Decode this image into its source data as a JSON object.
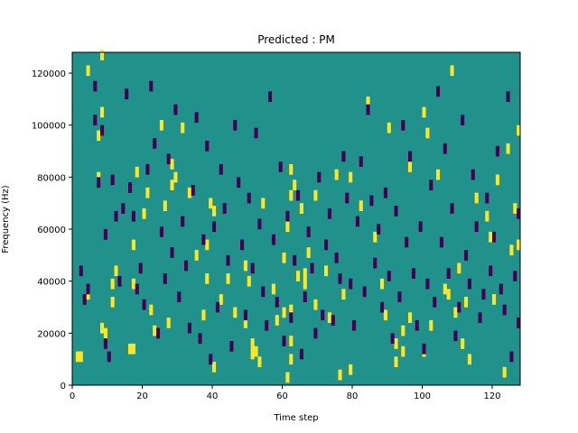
{
  "chart_data": {
    "type": "heatmap",
    "title": "Predicted : PM",
    "xlabel": "Time step",
    "ylabel": "Frequency (Hz)",
    "xlim": [
      0,
      128
    ],
    "ylim": [
      0,
      128000
    ],
    "x_ticks": [
      0,
      20,
      40,
      60,
      80,
      100,
      120
    ],
    "y_ticks": [
      0,
      20000,
      40000,
      60000,
      80000,
      100000,
      120000
    ],
    "y_tick_labels": [
      "0",
      "20000",
      "40000",
      "60000",
      "80000",
      "100000",
      "120000"
    ],
    "colormap": {
      "background": "#21918c",
      "high": "#fde725",
      "low": "#440154"
    },
    "grid": false,
    "cells": {
      "high": [
        [
          1,
          12
        ],
        [
          2,
          12
        ],
        [
          4,
          36
        ],
        [
          4,
          122
        ],
        [
          7,
          97
        ],
        [
          7,
          81
        ],
        [
          8,
          106
        ],
        [
          8,
          23
        ],
        [
          8,
          128
        ],
        [
          9,
          21
        ],
        [
          11,
          40
        ],
        [
          11,
          33
        ],
        [
          12,
          45
        ],
        [
          16,
          15
        ],
        [
          17,
          15
        ],
        [
          17,
          55
        ],
        [
          17,
          40
        ],
        [
          18,
          83
        ],
        [
          20,
          67
        ],
        [
          21,
          75
        ],
        [
          22,
          30
        ],
        [
          23,
          22
        ],
        [
          25,
          101
        ],
        [
          26,
          70
        ],
        [
          27,
          25
        ],
        [
          28,
          86
        ],
        [
          28,
          78
        ],
        [
          29,
          81
        ],
        [
          31,
          100
        ],
        [
          33,
          75
        ],
        [
          35,
          51
        ],
        [
          37,
          28
        ],
        [
          38,
          55
        ],
        [
          38,
          42
        ],
        [
          39,
          71
        ],
        [
          40,
          8
        ],
        [
          40,
          68
        ],
        [
          42,
          34
        ],
        [
          44,
          42
        ],
        [
          46,
          29
        ],
        [
          49,
          25
        ],
        [
          49,
          47
        ],
        [
          50,
          41
        ],
        [
          51,
          13
        ],
        [
          51,
          17
        ],
        [
          52,
          14
        ],
        [
          53,
          10
        ],
        [
          54,
          71
        ],
        [
          57,
          38
        ],
        [
          58,
          26
        ],
        [
          60,
          50
        ],
        [
          60,
          29
        ],
        [
          61,
          4
        ],
        [
          61,
          62
        ],
        [
          62,
          30
        ],
        [
          62,
          18
        ],
        [
          62,
          11
        ],
        [
          62,
          84
        ],
        [
          62,
          74
        ],
        [
          63,
          78
        ],
        [
          64,
          43
        ],
        [
          65,
          69
        ],
        [
          66,
          40
        ],
        [
          66,
          44
        ],
        [
          67,
          52
        ],
        [
          69,
          32
        ],
        [
          69,
          74
        ],
        [
          72,
          45
        ],
        [
          73,
          27
        ],
        [
          75,
          82
        ],
        [
          76,
          5
        ],
        [
          77,
          36
        ],
        [
          79,
          7
        ],
        [
          79,
          81
        ],
        [
          82,
          70
        ],
        [
          84,
          110
        ],
        [
          86,
          58
        ],
        [
          88,
          40
        ],
        [
          89,
          28
        ],
        [
          90,
          100
        ],
        [
          92,
          10
        ],
        [
          92,
          17
        ],
        [
          94,
          22
        ],
        [
          94,
          14
        ],
        [
          96,
          27
        ],
        [
          96,
          85
        ],
        [
          100,
          106
        ],
        [
          100,
          14
        ],
        [
          101,
          98
        ],
        [
          102,
          24
        ],
        [
          104,
          82
        ],
        [
          106,
          38
        ],
        [
          107,
          36
        ],
        [
          108,
          122
        ],
        [
          109,
          29
        ],
        [
          110,
          46
        ],
        [
          111,
          17
        ],
        [
          112,
          33
        ],
        [
          113,
          11
        ],
        [
          115,
          73
        ],
        [
          118,
          66
        ],
        [
          119,
          58
        ],
        [
          120,
          34
        ],
        [
          121,
          80
        ],
        [
          123,
          6
        ],
        [
          124,
          92
        ],
        [
          125,
          53
        ],
        [
          126,
          69
        ],
        [
          127,
          55
        ],
        [
          127,
          99
        ]
      ],
      "low": [
        [
          2,
          45
        ],
        [
          3,
          34
        ],
        [
          4,
          38
        ],
        [
          6,
          116
        ],
        [
          6,
          103
        ],
        [
          7,
          79
        ],
        [
          8,
          99
        ],
        [
          9,
          17
        ],
        [
          9,
          59
        ],
        [
          10,
          12
        ],
        [
          11,
          80
        ],
        [
          12,
          66
        ],
        [
          13,
          41
        ],
        [
          14,
          69
        ],
        [
          15,
          113
        ],
        [
          16,
          77
        ],
        [
          17,
          66
        ],
        [
          18,
          38
        ],
        [
          19,
          46
        ],
        [
          20,
          32
        ],
        [
          21,
          84
        ],
        [
          22,
          116
        ],
        [
          23,
          94
        ],
        [
          24,
          21
        ],
        [
          25,
          60
        ],
        [
          26,
          42
        ],
        [
          27,
          88
        ],
        [
          28,
          52
        ],
        [
          29,
          107
        ],
        [
          30,
          35
        ],
        [
          31,
          64
        ],
        [
          32,
          47
        ],
        [
          33,
          23
        ],
        [
          34,
          76
        ],
        [
          35,
          104
        ],
        [
          36,
          19
        ],
        [
          37,
          57
        ],
        [
          38,
          93
        ],
        [
          39,
          11
        ],
        [
          40,
          62
        ],
        [
          41,
          31
        ],
        [
          42,
          84
        ],
        [
          43,
          69
        ],
        [
          44,
          49
        ],
        [
          45,
          16
        ],
        [
          46,
          101
        ],
        [
          47,
          79
        ],
        [
          48,
          55
        ],
        [
          49,
          28
        ],
        [
          50,
          73
        ],
        [
          51,
          46
        ],
        [
          52,
          98
        ],
        [
          53,
          63
        ],
        [
          54,
          37
        ],
        [
          55,
          24
        ],
        [
          56,
          112
        ],
        [
          57,
          57
        ],
        [
          58,
          33
        ],
        [
          59,
          85
        ],
        [
          60,
          18
        ],
        [
          61,
          66
        ],
        [
          62,
          27
        ],
        [
          63,
          49
        ],
        [
          64,
          74
        ],
        [
          65,
          13
        ],
        [
          66,
          35
        ],
        [
          67,
          60
        ],
        [
          68,
          46
        ],
        [
          69,
          21
        ],
        [
          70,
          81
        ],
        [
          71,
          28
        ],
        [
          72,
          55
        ],
        [
          73,
          67
        ],
        [
          74,
          26
        ],
        [
          75,
          50
        ],
        [
          76,
          42
        ],
        [
          77,
          89
        ],
        [
          78,
          73
        ],
        [
          79,
          40
        ],
        [
          80,
          24
        ],
        [
          81,
          64
        ],
        [
          82,
          87
        ],
        [
          83,
          37
        ],
        [
          84,
          107
        ],
        [
          85,
          72
        ],
        [
          86,
          48
        ],
        [
          87,
          61
        ],
        [
          88,
          31
        ],
        [
          89,
          75
        ],
        [
          90,
          43
        ],
        [
          91,
          19
        ],
        [
          92,
          68
        ],
        [
          93,
          35
        ],
        [
          94,
          101
        ],
        [
          95,
          56
        ],
        [
          96,
          89
        ],
        [
          97,
          44
        ],
        [
          98,
          24
        ],
        [
          99,
          62
        ],
        [
          100,
          15
        ],
        [
          101,
          40
        ],
        [
          102,
          78
        ],
        [
          103,
          33
        ],
        [
          104,
          114
        ],
        [
          105,
          56
        ],
        [
          106,
          92
        ],
        [
          107,
          44
        ],
        [
          108,
          69
        ],
        [
          109,
          20
        ],
        [
          110,
          31
        ],
        [
          111,
          103
        ],
        [
          112,
          51
        ],
        [
          113,
          40
        ],
        [
          114,
          82
        ],
        [
          115,
          62
        ],
        [
          116,
          27
        ],
        [
          117,
          36
        ],
        [
          118,
          73
        ],
        [
          119,
          45
        ],
        [
          120,
          58
        ],
        [
          121,
          91
        ],
        [
          122,
          38
        ],
        [
          123,
          30
        ],
        [
          124,
          112
        ],
        [
          125,
          12
        ],
        [
          126,
          43
        ],
        [
          127,
          25
        ],
        [
          127,
          67
        ]
      ]
    }
  }
}
